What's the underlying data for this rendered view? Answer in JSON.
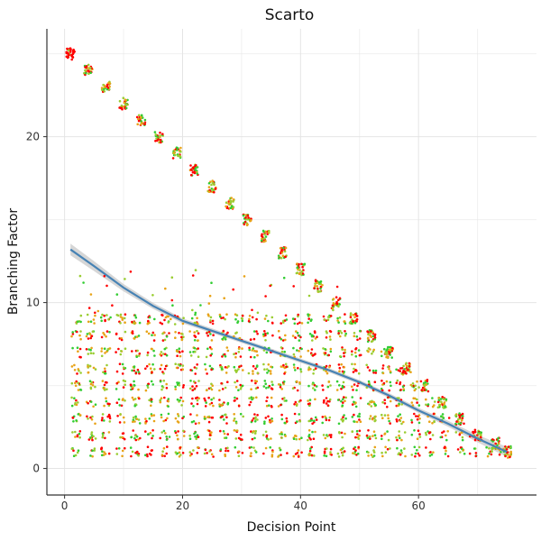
{
  "chart_data": {
    "type": "scatter",
    "title": "Scarto",
    "xlabel": "Decision Point",
    "ylabel": "Branching Factor",
    "xlim": [
      -3,
      80
    ],
    "ylim": [
      -1.6,
      26.5
    ],
    "x_ticks": [
      0,
      20,
      40,
      60
    ],
    "y_ticks": [
      0,
      10,
      20
    ],
    "grid": true,
    "point_colors": [
      "#ff0000",
      "#e8a317",
      "#9acd32",
      "#32cd32"
    ],
    "diagonal_clusters": {
      "x": [
        1,
        4,
        7,
        10,
        13,
        16,
        19,
        22,
        25,
        28,
        31,
        34,
        37,
        40,
        43,
        46,
        49,
        52,
        55,
        58,
        61,
        64,
        67,
        70,
        73,
        75
      ],
      "y": [
        25,
        24,
        23,
        22,
        21,
        20,
        19,
        18,
        17,
        16,
        15,
        14,
        13,
        12,
        11,
        10,
        9,
        8,
        7,
        6,
        5,
        4,
        3,
        2,
        1.5,
        1
      ]
    },
    "trend_line": {
      "name": "smooth",
      "color": "#4682b4",
      "ribbon_color": "#c8c8c8",
      "x": [
        1,
        5,
        10,
        15,
        20,
        25,
        30,
        35,
        40,
        45,
        50,
        55,
        60,
        65,
        70,
        75
      ],
      "y": [
        13.2,
        12.2,
        10.9,
        9.8,
        8.9,
        8.3,
        7.7,
        7.1,
        6.5,
        5.9,
        5.2,
        4.4,
        3.5,
        2.7,
        1.8,
        1.0
      ],
      "se": [
        0.35,
        0.3,
        0.22,
        0.18,
        0.15,
        0.14,
        0.13,
        0.13,
        0.13,
        0.13,
        0.13,
        0.14,
        0.15,
        0.18,
        0.22,
        0.3
      ]
    }
  }
}
